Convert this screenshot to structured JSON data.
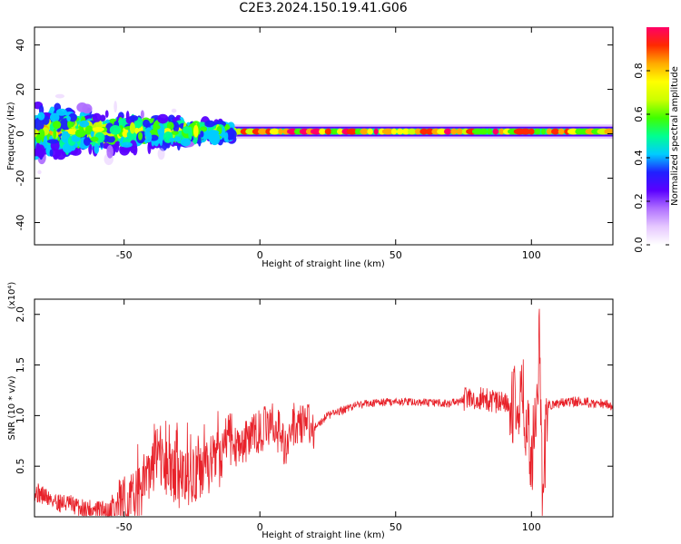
{
  "title": "C2E3.2024.150.19.41.G06",
  "colors": {
    "snr_line": "#e8222a",
    "frame": "#000000"
  },
  "chart_data": [
    {
      "type": "heatmap",
      "xlabel": "Height of straight line (km)",
      "ylabel": "Frequency (Hz)",
      "xlim": [
        -83,
        130
      ],
      "ylim": [
        -50,
        48
      ],
      "xticks": [
        -50,
        0,
        50,
        100
      ],
      "yticks": [
        -40,
        -20,
        0,
        20,
        40
      ],
      "xtick_labels": [
        "-50",
        "0",
        "50",
        "100"
      ],
      "ytick_labels": [
        "-40",
        "-20",
        "0",
        "20",
        "40"
      ],
      "colorbar": {
        "label": "Normalized spectral amplitude",
        "range": [
          0,
          1
        ],
        "ticks": [
          0.0,
          0.2,
          0.4,
          0.6,
          0.8
        ],
        "tick_labels": [
          "0.0",
          "0.2",
          "0.4",
          "0.6",
          "0.8"
        ],
        "colormap": [
          "#ffffff",
          "#e6c8ff",
          "#b070ff",
          "#5a00ff",
          "#2020ff",
          "#00ccff",
          "#00ff90",
          "#40ff00",
          "#ccff00",
          "#ffff00",
          "#ffaa00",
          "#ff2a00",
          "#ff0066"
        ]
      },
      "signal": {
        "center_frequency": 1,
        "band_halfwidth": 2,
        "noisy_region_range": [
          -83,
          -10
        ],
        "noisy_spread_hz": 10
      }
    },
    {
      "type": "line",
      "xlabel": "Height of straight line (km)",
      "ylabel": "SNR (10 * v/v)",
      "y_multiplier": "(x10⁴)",
      "xlim": [
        -83,
        130
      ],
      "ylim": [
        0,
        2.15
      ],
      "xticks": [
        -50,
        0,
        50,
        100
      ],
      "yticks": [
        0.5,
        1.0,
        1.5,
        2.0
      ],
      "xtick_labels": [
        "-50",
        "0",
        "50",
        "100"
      ],
      "ytick_labels": [
        "0.5",
        "1.0",
        "1.5",
        "2.0"
      ],
      "series": [
        {
          "x": [
            -83,
            -75,
            -70,
            -65,
            -60,
            -55,
            -50,
            -45,
            -42,
            -40,
            -38,
            -35,
            -30,
            -25,
            -20,
            -15,
            -12,
            -10,
            -5,
            0,
            5,
            8,
            10,
            12,
            15,
            20,
            25,
            30,
            35,
            40,
            50,
            60,
            70,
            75,
            80,
            85,
            90,
            95,
            97,
            100,
            102,
            103,
            104,
            106,
            110,
            115,
            120,
            125,
            130
          ],
          "y": [
            0.25,
            0.15,
            0.12,
            0.08,
            0.07,
            0.06,
            0.1,
            0.18,
            0.4,
            0.5,
            0.6,
            0.48,
            0.38,
            0.42,
            0.48,
            0.55,
            0.75,
            0.7,
            0.75,
            0.85,
            0.92,
            0.8,
            0.65,
            0.9,
            0.95,
            0.88,
            1.0,
            1.05,
            1.1,
            1.12,
            1.14,
            1.13,
            1.12,
            1.15,
            1.18,
            1.15,
            1.12,
            1.1,
            1.18,
            0.55,
            1.12,
            1.95,
            0.15,
            1.1,
            1.12,
            1.14,
            1.13,
            1.12,
            1.1
          ]
        }
      ]
    }
  ]
}
